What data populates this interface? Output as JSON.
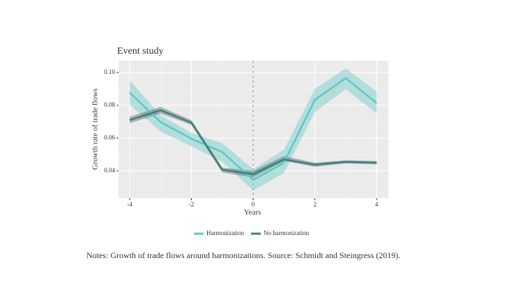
{
  "chart_data": {
    "type": "line",
    "title": "Event study",
    "x_label": "Years",
    "y_label": "Growth rate of trade flows",
    "x": [
      -4,
      -3,
      -2,
      -1,
      0,
      1,
      2,
      3,
      4
    ],
    "series": [
      {
        "name": "Harmonization",
        "color": "#5ec9c4",
        "band_color": "#5ec9c4",
        "values": [
          0.0877,
          0.0698,
          0.0596,
          0.0515,
          0.0345,
          0.045,
          0.0834,
          0.0966,
          0.0813
        ],
        "lower": [
          0.0804,
          0.064,
          0.055,
          0.0455,
          0.028,
          0.0387,
          0.076,
          0.0898,
          0.075
        ],
        "upper": [
          0.0953,
          0.074,
          0.063,
          0.057,
          0.041,
          0.053,
          0.09,
          0.1025,
          0.0885
        ]
      },
      {
        "name": "No harmonization",
        "color": "#3f7f7c",
        "band_color": "#4d5a59",
        "values": [
          0.071,
          0.077,
          0.0694,
          0.0407,
          0.038,
          0.047,
          0.0438,
          0.0455,
          0.045
        ],
        "lower": [
          0.069,
          0.075,
          0.068,
          0.039,
          0.036,
          0.046,
          0.0425,
          0.0445,
          0.044
        ],
        "upper": [
          0.073,
          0.079,
          0.071,
          0.042,
          0.04,
          0.049,
          0.045,
          0.0465,
          0.046
        ]
      }
    ],
    "xlim": [
      -4.36,
      4.38
    ],
    "xticks": [
      -4,
      -2,
      0,
      2,
      4
    ],
    "x_minor_ticks": [
      -3,
      -1,
      1,
      3
    ],
    "ylim": [
      0.0234,
      0.1072
    ],
    "yticks": [
      0.04,
      0.06,
      0.08,
      {
        "value": 0.1,
        "label": "0.10"
      }
    ],
    "y_minor_ticks": [
      0.05,
      0.07,
      0.09
    ],
    "vline": 0,
    "grid": true,
    "legend": "bottom",
    "note": "Notes: Growth of trade flows around harmonizations. Source: Schmidt and Steingress (2019)."
  }
}
